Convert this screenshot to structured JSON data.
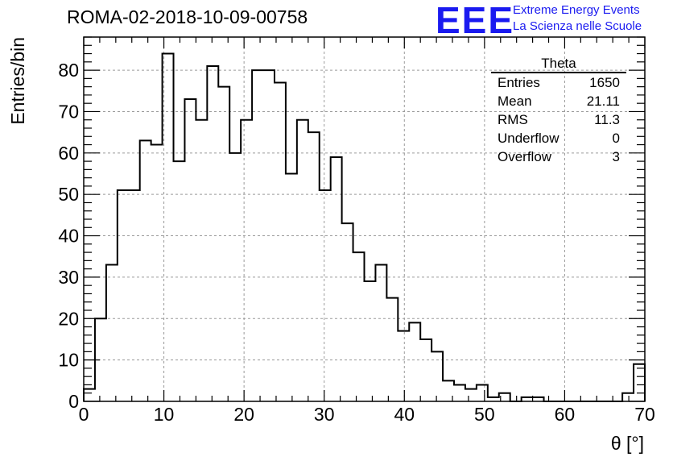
{
  "header": {
    "run_title": "ROMA-02-2018-10-09-00758"
  },
  "logo": {
    "mark": "EEE",
    "line1": "Extreme Energy Events",
    "line2": "La Scienza nelle Scuole"
  },
  "stats_box": {
    "title": "Theta",
    "rows": [
      {
        "label": "Entries",
        "value": "1650"
      },
      {
        "label": "Mean",
        "value": "21.11"
      },
      {
        "label": "RMS",
        "value": "11.3"
      },
      {
        "label": "Underflow",
        "value": "0"
      },
      {
        "label": "Overflow",
        "value": "3"
      }
    ]
  },
  "chart_data": {
    "type": "histogram",
    "xlabel": "θ [°]",
    "ylabel": "Entries/bin",
    "xlim": [
      0,
      70
    ],
    "ylim": [
      0,
      88
    ],
    "bin_width": 1.4,
    "xticks": [
      0,
      10,
      20,
      30,
      40,
      50,
      60,
      70
    ],
    "yticks": [
      0,
      10,
      20,
      30,
      40,
      50,
      60,
      70,
      80
    ],
    "grid": true,
    "colors": {
      "line": "#000000",
      "grid": "#9a9a9a"
    },
    "bin_edges": [
      0,
      1.4,
      2.8,
      4.2,
      5.6,
      7.0,
      8.4,
      9.8,
      11.2,
      12.6,
      14.0,
      15.4,
      16.8,
      18.2,
      19.6,
      21.0,
      22.4,
      23.8,
      25.2,
      26.6,
      28.0,
      29.4,
      30.8,
      32.2,
      33.6,
      35.0,
      36.4,
      37.8,
      39.2,
      40.6,
      42.0,
      43.4,
      44.8,
      46.2,
      47.6,
      49.0,
      50.4,
      51.8,
      53.2,
      54.6,
      56.0,
      57.4,
      58.8,
      60.2,
      61.6,
      63.0,
      64.4,
      65.8,
      67.2,
      68.6,
      70.0
    ],
    "values": [
      3,
      20,
      33,
      51,
      51,
      63,
      62,
      84,
      58,
      73,
      68,
      81,
      76,
      60,
      68,
      80,
      80,
      77,
      55,
      68,
      65,
      51,
      59,
      43,
      36,
      29,
      33,
      25,
      17,
      19,
      15,
      12,
      5,
      4,
      3,
      4,
      1,
      2,
      0,
      1,
      1,
      0,
      0,
      0,
      0,
      0,
      0,
      0,
      2,
      9
    ]
  }
}
